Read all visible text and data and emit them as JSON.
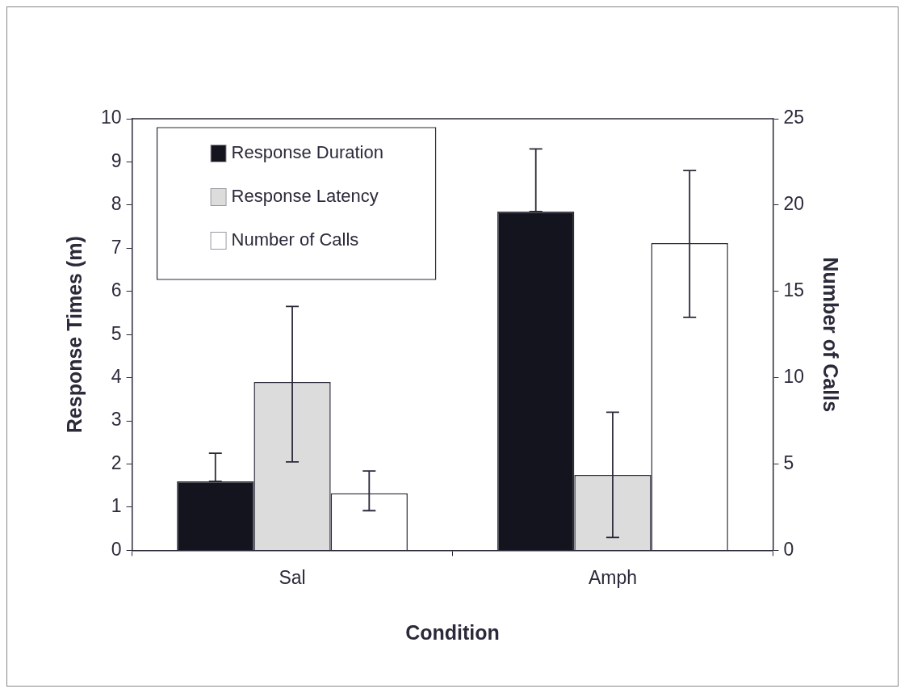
{
  "chart_data": {
    "type": "bar",
    "categories": [
      "Sal",
      "Amph"
    ],
    "xlabel": "Condition",
    "ylabel": "Response Times (m)",
    "y2label": "Number of Calls",
    "series": [
      {
        "name": "Response Duration",
        "color": "#14141e",
        "values": [
          1.6,
          7.85
        ],
        "errors": [
          [
            1.6,
            2.25
          ],
          [
            7.85,
            9.3
          ]
        ]
      },
      {
        "name": "Response Latency",
        "color": "#dcdcdc",
        "values": [
          3.9,
          1.75
        ],
        "errors": [
          [
            2.05,
            5.65
          ],
          [
            0.3,
            3.2
          ]
        ]
      },
      {
        "name": "Number of Calls",
        "color": "#ffffff",
        "axis": "y2",
        "values": [
          3.3,
          17.8
        ],
        "errors": [
          [
            2.3,
            4.6
          ],
          [
            13.5,
            22
          ]
        ]
      }
    ],
    "ylim": [
      0,
      10
    ],
    "yticks": [
      0,
      1,
      2,
      3,
      4,
      5,
      6,
      7,
      8,
      9,
      10
    ],
    "y2lim": [
      0,
      25
    ],
    "y2ticks": [
      0,
      5,
      10,
      15,
      20,
      25
    ],
    "grid": false,
    "legend": "top left"
  }
}
